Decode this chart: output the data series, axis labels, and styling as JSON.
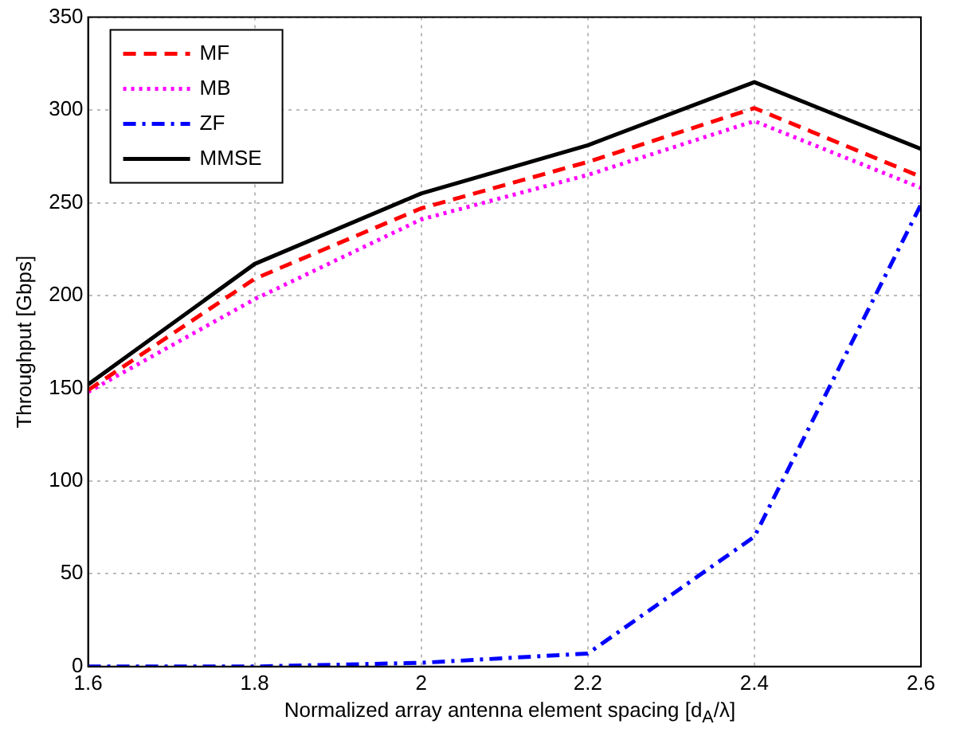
{
  "chart_data": {
    "type": "line",
    "xlabel": "Normalized array antenna element spacing [d$_{A}$/λ]",
    "ylabel": "Throughput [Gbps]",
    "x": [
      1.6,
      1.8,
      2.0,
      2.2,
      2.4,
      2.6
    ],
    "series": [
      {
        "name": "MF",
        "color": "#ff0000",
        "line_style": "dashed",
        "values": [
          149,
          209,
          247,
          272,
          301,
          264
        ]
      },
      {
        "name": "MB",
        "color": "#ff00ff",
        "line_style": "dotted",
        "values": [
          148,
          198,
          241,
          265,
          294,
          258
        ]
      },
      {
        "name": "ZF",
        "color": "#0000ff",
        "line_style": "dashdot",
        "values": [
          0,
          0,
          2,
          7,
          70,
          249
        ]
      },
      {
        "name": "MMSE",
        "color": "#000000",
        "line_style": "solid",
        "values": [
          152,
          217,
          255,
          281,
          315,
          279
        ]
      }
    ],
    "xlim": [
      1.6,
      2.6
    ],
    "xticks": [
      1.6,
      1.8,
      2,
      2.2,
      2.4,
      2.6
    ],
    "ylim": [
      0,
      350
    ],
    "yticks": [
      0,
      50,
      100,
      150,
      200,
      250,
      300,
      350
    ],
    "grid": true,
    "legend": "top left",
    "marker": "none"
  }
}
